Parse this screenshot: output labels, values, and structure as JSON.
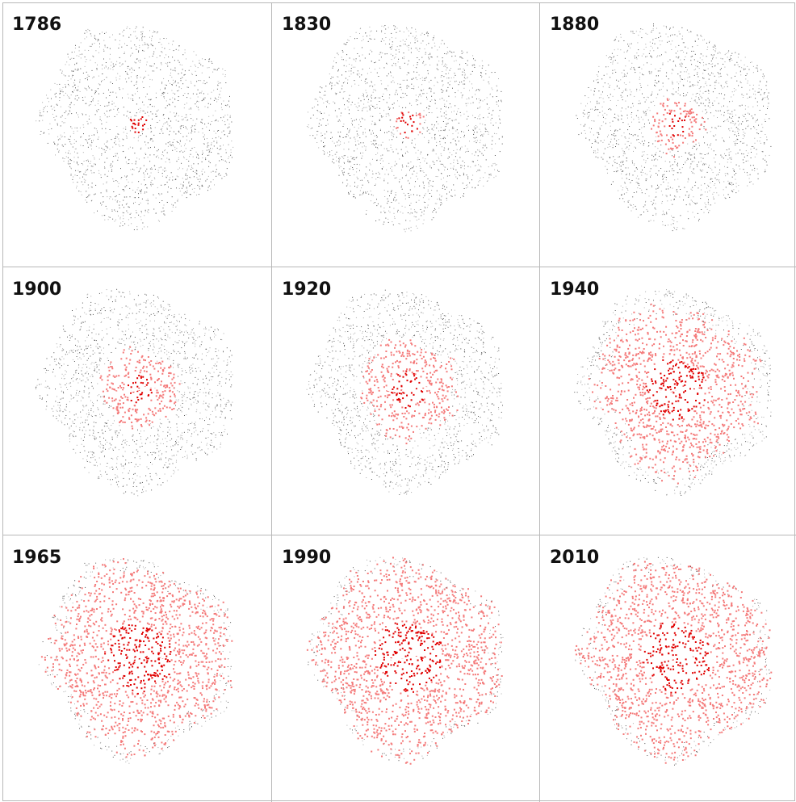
{
  "panels": [
    {
      "label": "1786"
    },
    {
      "label": "1830"
    },
    {
      "label": "1880"
    },
    {
      "label": "1900"
    },
    {
      "label": "1920"
    },
    {
      "label": "1940"
    },
    {
      "label": "1965"
    },
    {
      "label": "1990"
    },
    {
      "label": "2010"
    }
  ]
}
